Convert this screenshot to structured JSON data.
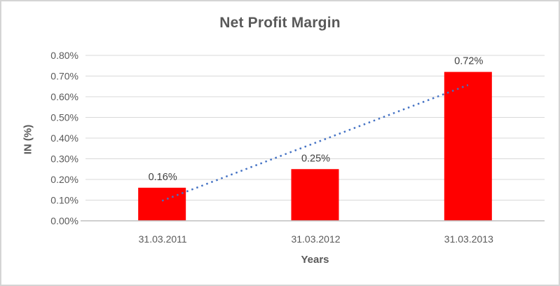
{
  "chart": {
    "title": "Net Profit Margin",
    "xlabel": "Years",
    "ylabel": "IN (%)"
  },
  "chart_data": {
    "type": "bar",
    "title": "Net Profit Margin",
    "xlabel": "Years",
    "ylabel": "IN (%)",
    "categories": [
      "31.03.2011",
      "31.03.2012",
      "31.03.2013"
    ],
    "values": [
      0.16,
      0.25,
      0.72
    ],
    "data_labels": [
      "0.16%",
      "0.25%",
      "0.72%"
    ],
    "ytick_labels": [
      "0.00%",
      "0.10%",
      "0.20%",
      "0.30%",
      "0.40%",
      "0.50%",
      "0.60%",
      "0.70%",
      "0.80%"
    ],
    "ylim": [
      0,
      0.8
    ],
    "ytick_step": 0.1,
    "grid": true,
    "legend": "none",
    "bar_color": "#ff0000",
    "trendline": {
      "type": "linear",
      "style": "dotted",
      "color": "#4472c4",
      "endpoint_values": [
        0.097,
        0.657
      ]
    },
    "colors": {
      "title": "#595959",
      "axis_titles": "#595959",
      "tick_labels": "#595959",
      "data_labels": "#404040",
      "gridline": "#d9d9d9",
      "axis_line": "#bfbfbf",
      "background": "#ffffff",
      "border": "#d4d4d4"
    }
  }
}
